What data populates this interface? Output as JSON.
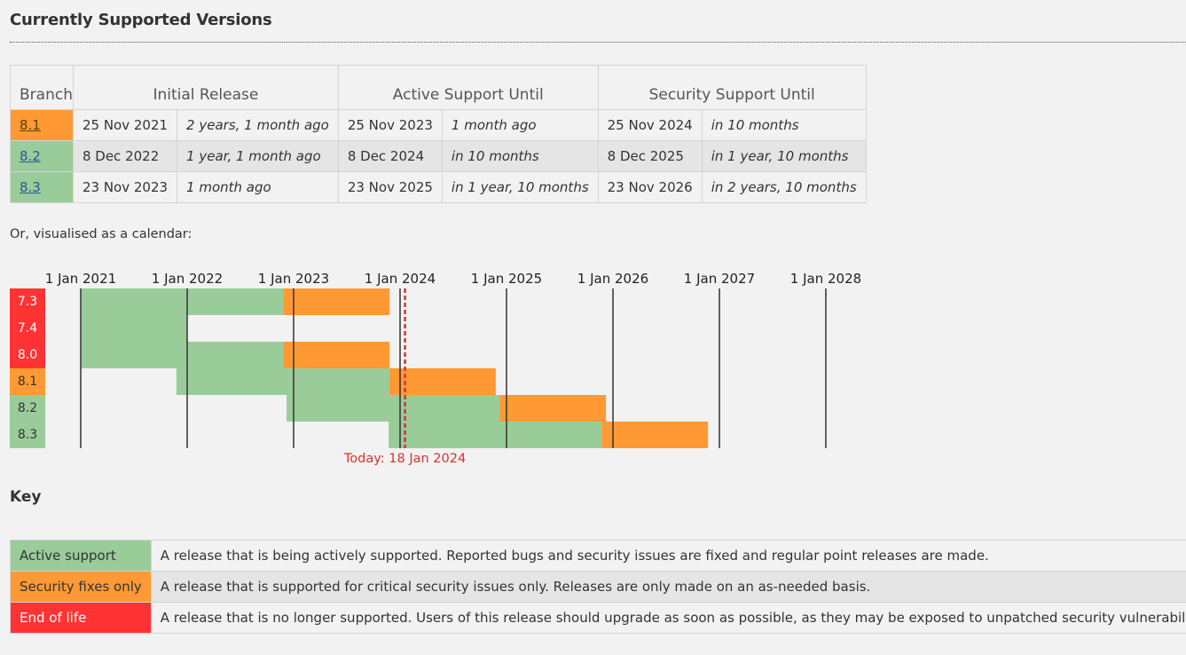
{
  "page_title": "Currently Supported Versions",
  "versions_table": {
    "headers": {
      "branch": "Branch",
      "initial_release": "Initial Release",
      "active_support": "Active Support Until",
      "security_support": "Security Support Until"
    },
    "rows": [
      {
        "branch": "8.1",
        "status": "security",
        "initial_date": "25 Nov 2021",
        "initial_rel": "2 years, 1 month ago",
        "active_date": "25 Nov 2023",
        "active_rel": "1 month ago",
        "security_date": "25 Nov 2024",
        "security_rel": "in 10 months"
      },
      {
        "branch": "8.2",
        "status": "active",
        "initial_date": "8 Dec 2022",
        "initial_rel": "1 year, 1 month ago",
        "active_date": "8 Dec 2024",
        "active_rel": "in 10 months",
        "security_date": "8 Dec 2025",
        "security_rel": "in 1 year, 10 months"
      },
      {
        "branch": "8.3",
        "status": "active",
        "initial_date": "23 Nov 2023",
        "initial_rel": "1 month ago",
        "active_date": "23 Nov 2025",
        "active_rel": "in 1 year, 10 months",
        "security_date": "23 Nov 2026",
        "security_rel": "in 2 years, 10 months"
      }
    ]
  },
  "calendar_intro": "Or, visualised as a calendar:",
  "calendar": {
    "year_labels": [
      "1 Jan 2021",
      "1 Jan 2022",
      "1 Jan 2023",
      "1 Jan 2024",
      "1 Jan 2025",
      "1 Jan 2026",
      "1 Jan 2027",
      "1 Jan 2028"
    ],
    "today_label": "Today: 18 Jan 2024",
    "today_date": "2024-01-18",
    "branches": [
      {
        "branch": "7.3",
        "status": "eol",
        "release": "2020-11-26",
        "active_end": "2022-11-26",
        "security_end": "2023-11-26"
      },
      {
        "branch": "7.4",
        "status": "eol",
        "release": "2021-01-01",
        "active_end": "2022-01-01",
        "security_end": "2022-01-01"
      },
      {
        "branch": "8.0",
        "status": "eol",
        "release": "2020-11-26",
        "active_end": "2022-11-26",
        "security_end": "2023-11-26"
      },
      {
        "branch": "8.1",
        "status": "security",
        "release": "2021-11-25",
        "active_end": "2023-11-25",
        "security_end": "2024-11-25"
      },
      {
        "branch": "8.2",
        "status": "active",
        "release": "2022-12-08",
        "active_end": "2024-12-08",
        "security_end": "2025-12-08"
      },
      {
        "branch": "8.3",
        "status": "active",
        "release": "2023-11-23",
        "active_end": "2025-11-23",
        "security_end": "2026-11-23"
      }
    ]
  },
  "key": {
    "heading": "Key",
    "rows": [
      {
        "name": "Active support",
        "status": "active",
        "description": "A release that is being actively supported. Reported bugs and security issues are fixed and regular point releases are made."
      },
      {
        "name": "Security fixes only",
        "status": "security",
        "description": "A release that is supported for critical security issues only. Releases are only made on an as-needed basis."
      },
      {
        "name": "End of life",
        "status": "eol",
        "description": "A release that is no longer supported. Users of this release should upgrade as soon as possible, as they may be exposed to unpatched security vulnerabilities."
      }
    ]
  },
  "colors": {
    "active": "#99cc99",
    "security": "#ff9933",
    "eol": "#ff3333",
    "today_line": "#d9332e",
    "link": "#2b5697"
  }
}
